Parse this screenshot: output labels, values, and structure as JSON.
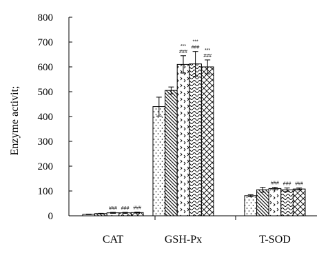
{
  "chart_data": {
    "type": "bar",
    "categories": [
      "CAT",
      "GSH-Px",
      "T-SOD"
    ],
    "ylabel": "Enzyme activit;",
    "ylim": [
      0,
      800
    ],
    "yticks": [
      0,
      100,
      200,
      300,
      400,
      500,
      600,
      700,
      800
    ],
    "grid": false,
    "series": [
      {
        "pattern": "dots-sparse",
        "values": [
          6,
          440,
          81
        ],
        "errors": [
          1,
          38,
          4
        ]
      },
      {
        "pattern": "diagonal-back",
        "values": [
          9,
          505,
          105
        ],
        "errors": [
          1,
          14,
          10
        ]
      },
      {
        "pattern": "chevron-dots",
        "values": [
          12,
          610,
          110
        ],
        "errors": [
          2,
          35,
          5
        ],
        "sig": [
          "###",
          "***\n###",
          "###"
        ]
      },
      {
        "pattern": "wave",
        "values": [
          12,
          612,
          105
        ],
        "errors": [
          2,
          50,
          7
        ],
        "sig": [
          "###",
          "***\n###",
          "###"
        ]
      },
      {
        "pattern": "crosshatch",
        "values": [
          13,
          600,
          108
        ],
        "errors": [
          2,
          28,
          4
        ],
        "sig": [
          "###",
          "***\n###",
          "###"
        ]
      }
    ]
  }
}
